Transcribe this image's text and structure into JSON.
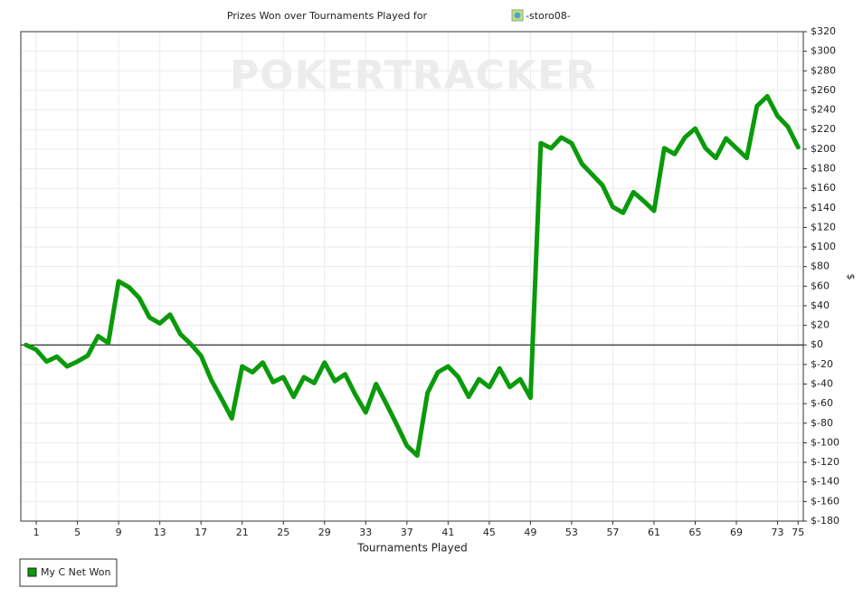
{
  "chart_data": {
    "type": "line",
    "title": "Prizes Won over Tournaments Played for",
    "player": "-storo08-",
    "watermark": "POKERTRACKER",
    "xlabel": "Tournaments Played",
    "ylabel": "$",
    "x": [
      0,
      1,
      2,
      3,
      4,
      5,
      6,
      7,
      8,
      9,
      10,
      11,
      12,
      13,
      14,
      15,
      16,
      17,
      18,
      19,
      20,
      21,
      22,
      23,
      24,
      25,
      26,
      27,
      28,
      29,
      30,
      31,
      32,
      33,
      34,
      35,
      36,
      37,
      38,
      39,
      40,
      41,
      42,
      43,
      44,
      45,
      46,
      47,
      48,
      49,
      50,
      51,
      52,
      53,
      54,
      55,
      56,
      57,
      58,
      59,
      60,
      61,
      62,
      63,
      64,
      65,
      66,
      67,
      68,
      69,
      70,
      71,
      72,
      73,
      74,
      75
    ],
    "series": [
      {
        "name": "My C Net Won",
        "color": "#0a9a0a",
        "values": [
          0,
          -5,
          -17,
          -12,
          -22,
          -17,
          -11,
          9,
          2,
          65,
          59,
          48,
          28,
          22,
          31,
          11,
          1,
          -11,
          -36,
          -55,
          -75,
          -22,
          -28,
          -18,
          -38,
          -33,
          -53,
          -33,
          -39,
          -18,
          -37,
          -30,
          -51,
          -69,
          -40,
          -60,
          -81,
          -103,
          -113,
          -49,
          -28,
          -22,
          -33,
          -53,
          -35,
          -43,
          -24,
          -43,
          -35,
          -54,
          206,
          201,
          212,
          206,
          185,
          174,
          163,
          141,
          135,
          156,
          147,
          137,
          201,
          195,
          212,
          221,
          201,
          191,
          211,
          201,
          191,
          244,
          254,
          234,
          223,
          202
        ]
      }
    ],
    "xlim": [
      -0.5,
      75.5
    ],
    "xticks": [
      1,
      5,
      9,
      13,
      17,
      21,
      25,
      29,
      33,
      37,
      41,
      45,
      49,
      53,
      57,
      61,
      65,
      69,
      73,
      75
    ],
    "ylim": [
      -180,
      320
    ],
    "yticks": [
      {
        "value": -180,
        "label": "$-180"
      },
      {
        "value": -160,
        "label": "$-160"
      },
      {
        "value": -140,
        "label": "$-140"
      },
      {
        "value": -120,
        "label": "$-120"
      },
      {
        "value": -100,
        "label": "$-100"
      },
      {
        "value": -80,
        "label": "$-80"
      },
      {
        "value": -60,
        "label": "$-60"
      },
      {
        "value": -40,
        "label": "$-40"
      },
      {
        "value": -20,
        "label": "$-20"
      },
      {
        "value": 0,
        "label": "$0"
      },
      {
        "value": 20,
        "label": "$20"
      },
      {
        "value": 40,
        "label": "$40"
      },
      {
        "value": 60,
        "label": "$60"
      },
      {
        "value": 80,
        "label": "$80"
      },
      {
        "value": 100,
        "label": "$100"
      },
      {
        "value": 120,
        "label": "$120"
      },
      {
        "value": 140,
        "label": "$140"
      },
      {
        "value": 160,
        "label": "$160"
      },
      {
        "value": 180,
        "label": "$180"
      },
      {
        "value": 200,
        "label": "$200"
      },
      {
        "value": 220,
        "label": "$220"
      },
      {
        "value": 240,
        "label": "$240"
      },
      {
        "value": 260,
        "label": "$260"
      },
      {
        "value": 280,
        "label": "$280"
      },
      {
        "value": 300,
        "label": "$300"
      },
      {
        "value": 320,
        "label": "$320"
      }
    ],
    "grid": true
  }
}
